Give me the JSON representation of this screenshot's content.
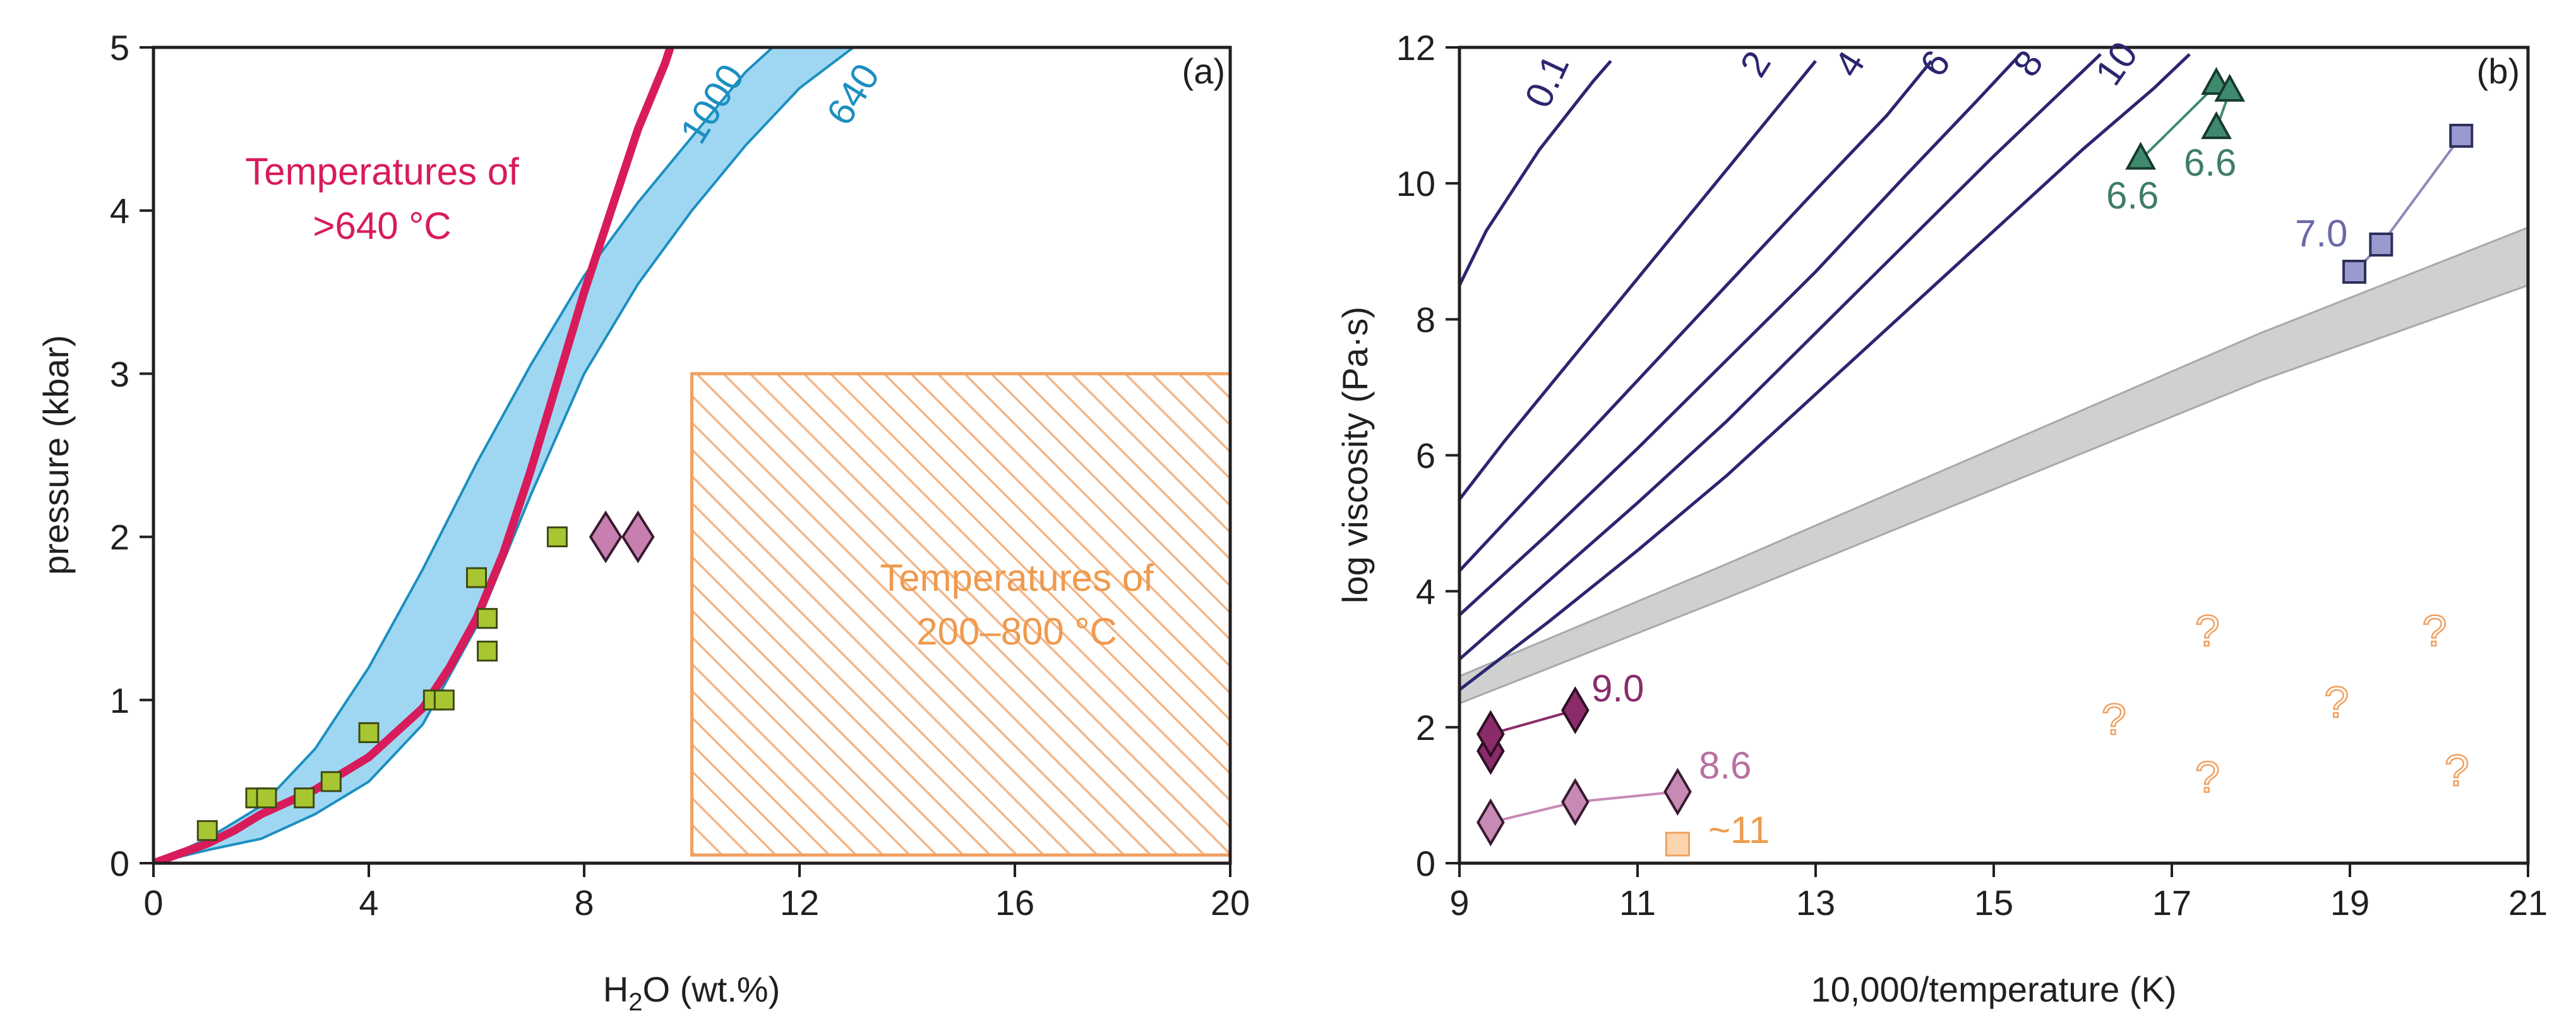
{
  "chart_data": [
    {
      "panel": "(a)",
      "type": "scatter",
      "xlabel_main": "H",
      "xlabel_sub": "2",
      "xlabel_rest": "O (wt.%)",
      "ylabel": "pressure (kbar)",
      "xlim": [
        0,
        20
      ],
      "ylim": [
        0,
        5
      ],
      "xticks": [
        0,
        4,
        8,
        12,
        16,
        20
      ],
      "yticks": [
        0,
        1,
        2,
        3,
        4,
        5
      ],
      "colors": {
        "curve": "#d81b5a",
        "band_fill": "#9fd7f3",
        "band_stroke": "#1b8fc0",
        "square": "#a8c632",
        "diamond": "#c77fb0",
        "hatch": "#f0a060"
      },
      "red_curve_label": [
        "Temperatures of",
        ">640 °C"
      ],
      "red_curve": [
        [
          0,
          0
        ],
        [
          0.5,
          0.06
        ],
        [
          1,
          0.12
        ],
        [
          1.5,
          0.2
        ],
        [
          2,
          0.3
        ],
        [
          3,
          0.45
        ],
        [
          4,
          0.65
        ],
        [
          5,
          0.95
        ],
        [
          5.5,
          1.2
        ],
        [
          6,
          1.5
        ],
        [
          6.5,
          1.9
        ],
        [
          7,
          2.4
        ],
        [
          7.5,
          2.95
        ],
        [
          8,
          3.5
        ],
        [
          8.5,
          4.0
        ],
        [
          9,
          4.5
        ],
        [
          9.5,
          4.9
        ],
        [
          9.8,
          5.2
        ]
      ],
      "band_label_upper": "1000",
      "band_label_lower": "640",
      "band_upper": [
        [
          0,
          0
        ],
        [
          1,
          0.15
        ],
        [
          2,
          0.35
        ],
        [
          3,
          0.7
        ],
        [
          4,
          1.2
        ],
        [
          5,
          1.8
        ],
        [
          6,
          2.45
        ],
        [
          7,
          3.05
        ],
        [
          8,
          3.6
        ],
        [
          9,
          4.05
        ],
        [
          10,
          4.45
        ],
        [
          11,
          4.85
        ],
        [
          11.5,
          5.0
        ]
      ],
      "band_lower": [
        [
          0,
          0
        ],
        [
          1,
          0.08
        ],
        [
          2,
          0.15
        ],
        [
          3,
          0.3
        ],
        [
          4,
          0.5
        ],
        [
          5,
          0.85
        ],
        [
          6,
          1.45
        ],
        [
          7,
          2.25
        ],
        [
          8,
          3.0
        ],
        [
          9,
          3.55
        ],
        [
          10,
          4.0
        ],
        [
          11,
          4.4
        ],
        [
          12,
          4.75
        ],
        [
          13,
          5.0
        ]
      ],
      "squares": [
        [
          1,
          0.2
        ],
        [
          1.9,
          0.4
        ],
        [
          2.1,
          0.4
        ],
        [
          2.8,
          0.4
        ],
        [
          3.3,
          0.5
        ],
        [
          4,
          0.8
        ],
        [
          5.2,
          1.0
        ],
        [
          5.4,
          1.0
        ],
        [
          6,
          1.75
        ],
        [
          6.2,
          1.3
        ],
        [
          6.2,
          1.5
        ],
        [
          7.5,
          2.0
        ]
      ],
      "diamonds": [
        [
          8.4,
          2.0
        ],
        [
          9,
          2.0
        ]
      ],
      "hatch_box": {
        "x0": 10,
        "x1": 20.4,
        "y0": 0.05,
        "y1": 3.0
      },
      "hatch_label": [
        "Temperatures of",
        "200–800 °C"
      ]
    },
    {
      "panel": "(b)",
      "type": "line",
      "xlabel": "10,000/temperature (K)",
      "ylabel": "log viscosity (Pa·s)",
      "xlim": [
        9,
        21
      ],
      "ylim": [
        0,
        12
      ],
      "xticks": [
        9,
        11,
        13,
        15,
        17,
        19,
        21
      ],
      "yticks": [
        0,
        2,
        4,
        6,
        8,
        10,
        12
      ],
      "colors": {
        "isoline": "#2b2570",
        "band": "#cfd0d0",
        "dark_diamond": "#8a2c6a",
        "light_diamond": "#c68ab5",
        "triangle": "#3f8a6e",
        "square": "#9a9ad0",
        "orange": "#f0a060"
      },
      "isolines": [
        {
          "label": "0.1",
          "pts": [
            [
              9,
              8.5
            ],
            [
              9.3,
              9.3
            ],
            [
              9.6,
              9.9
            ],
            [
              9.9,
              10.5
            ],
            [
              10.2,
              11.0
            ],
            [
              10.5,
              11.5
            ],
            [
              10.7,
              11.8
            ]
          ]
        },
        {
          "label": "2",
          "pts": [
            [
              9,
              5.35
            ],
            [
              9.5,
              6.2
            ],
            [
              10,
              7.0
            ],
            [
              10.5,
              7.8
            ],
            [
              11,
              8.6
            ],
            [
              11.5,
              9.4
            ],
            [
              12,
              10.2
            ],
            [
              12.5,
              11.0
            ],
            [
              13,
              11.8
            ]
          ]
        },
        {
          "label": "4",
          "pts": [
            [
              9,
              4.3
            ],
            [
              10,
              5.7
            ],
            [
              11,
              7.1
            ],
            [
              12,
              8.5
            ],
            [
              13,
              9.9
            ],
            [
              13.8,
              11.0
            ],
            [
              14.3,
              11.8
            ]
          ]
        },
        {
          "label": "6",
          "pts": [
            [
              9,
              3.65
            ],
            [
              10,
              4.85
            ],
            [
              11,
              6.1
            ],
            [
              12,
              7.4
            ],
            [
              13,
              8.7
            ],
            [
              14,
              10.1
            ],
            [
              14.8,
              11.2
            ],
            [
              15.3,
              11.9
            ]
          ]
        },
        {
          "label": "8",
          "pts": [
            [
              9,
              3.0
            ],
            [
              10,
              4.15
            ],
            [
              11,
              5.3
            ],
            [
              12,
              6.5
            ],
            [
              13,
              7.8
            ],
            [
              14,
              9.1
            ],
            [
              15,
              10.4
            ],
            [
              15.8,
              11.4
            ],
            [
              16.2,
              11.9
            ]
          ]
        },
        {
          "label": "10",
          "pts": [
            [
              9,
              2.55
            ],
            [
              10,
              3.55
            ],
            [
              11,
              4.6
            ],
            [
              12,
              5.7
            ],
            [
              13,
              6.9
            ],
            [
              14,
              8.1
            ],
            [
              15,
              9.3
            ],
            [
              16,
              10.5
            ],
            [
              16.8,
              11.4
            ],
            [
              17.2,
              11.9
            ]
          ]
        }
      ],
      "band_upper": [
        [
          9,
          2.75
        ],
        [
          12,
          4.4
        ],
        [
          15,
          6.1
        ],
        [
          18,
          7.8
        ],
        [
          21,
          9.35
        ]
      ],
      "band_lower": [
        [
          9,
          2.35
        ],
        [
          12,
          3.9
        ],
        [
          15,
          5.5
        ],
        [
          18,
          7.1
        ],
        [
          21,
          8.5
        ]
      ],
      "dark_diamonds": {
        "label": "9.0",
        "pts": [
          [
            9.35,
            1.65
          ],
          [
            9.35,
            1.9
          ],
          [
            10.3,
            2.25
          ]
        ]
      },
      "light_diamonds": {
        "label": "8.6",
        "pts": [
          [
            9.35,
            0.6
          ],
          [
            10.3,
            0.9
          ],
          [
            11.45,
            1.05
          ]
        ]
      },
      "triangles": {
        "label_left": "6.6",
        "label_right": "6.6",
        "pts": [
          [
            16.65,
            10.35
          ],
          [
            17.5,
            11.45
          ],
          [
            17.65,
            11.35
          ],
          [
            17.5,
            10.8
          ]
        ]
      },
      "squares": {
        "label": "7.0",
        "pts": [
          [
            19.05,
            8.7
          ],
          [
            19.35,
            9.1
          ],
          [
            20.25,
            10.7
          ]
        ]
      },
      "orange_square": {
        "label": "~11",
        "pt": [
          11.45,
          0.28
        ]
      },
      "questions": {
        "mark": "?",
        "pts": [
          [
            16.35,
            2.1
          ],
          [
            17.4,
            3.4
          ],
          [
            17.4,
            1.25
          ],
          [
            18.85,
            2.35
          ],
          [
            19.95,
            3.4
          ],
          [
            20.2,
            1.35
          ]
        ]
      }
    }
  ]
}
